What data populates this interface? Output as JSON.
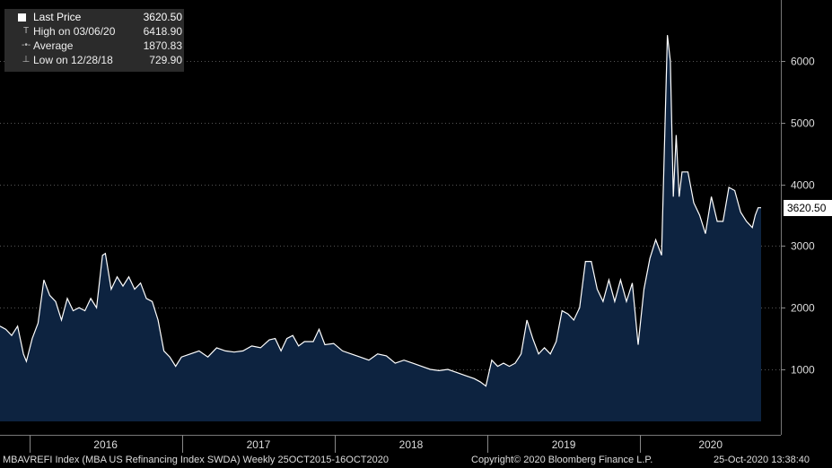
{
  "chart_data": {
    "type": "area",
    "title": "",
    "xlabel": "",
    "ylabel": "",
    "x_start": "2015-10-23",
    "x_end": "2020-10-16",
    "ylim": [
      0,
      7000
    ],
    "y_ticks": [
      1000,
      2000,
      3000,
      4000,
      5000,
      6000
    ],
    "x_ticks": [
      "2016",
      "2017",
      "2018",
      "2019",
      "2020"
    ],
    "grid": true,
    "series": [
      {
        "name": "Last Price",
        "color": "#ffffff",
        "fill": "#0d2340",
        "points": [
          [
            "2015-10-23",
            1700
          ],
          [
            "2015-11-06",
            1650
          ],
          [
            "2015-11-20",
            1550
          ],
          [
            "2015-12-04",
            1700
          ],
          [
            "2015-12-18",
            1250
          ],
          [
            "2015-12-25",
            1130
          ],
          [
            "2016-01-08",
            1500
          ],
          [
            "2016-01-22",
            1750
          ],
          [
            "2016-02-05",
            2450
          ],
          [
            "2016-02-19",
            2200
          ],
          [
            "2016-03-04",
            2100
          ],
          [
            "2016-03-18",
            1800
          ],
          [
            "2016-04-01",
            2150
          ],
          [
            "2016-04-15",
            1950
          ],
          [
            "2016-04-29",
            2000
          ],
          [
            "2016-05-13",
            1950
          ],
          [
            "2016-05-27",
            2150
          ],
          [
            "2016-06-10",
            2000
          ],
          [
            "2016-06-24",
            2850
          ],
          [
            "2016-07-01",
            2880
          ],
          [
            "2016-07-15",
            2300
          ],
          [
            "2016-07-29",
            2500
          ],
          [
            "2016-08-12",
            2350
          ],
          [
            "2016-08-26",
            2500
          ],
          [
            "2016-09-09",
            2300
          ],
          [
            "2016-09-23",
            2400
          ],
          [
            "2016-10-07",
            2150
          ],
          [
            "2016-10-21",
            2100
          ],
          [
            "2016-11-04",
            1800
          ],
          [
            "2016-11-18",
            1300
          ],
          [
            "2016-12-02",
            1200
          ],
          [
            "2016-12-16",
            1050
          ],
          [
            "2016-12-30",
            1200
          ],
          [
            "2017-01-20",
            1250
          ],
          [
            "2017-02-10",
            1300
          ],
          [
            "2017-03-03",
            1200
          ],
          [
            "2017-03-24",
            1350
          ],
          [
            "2017-04-14",
            1300
          ],
          [
            "2017-05-05",
            1280
          ],
          [
            "2017-05-26",
            1300
          ],
          [
            "2017-06-16",
            1380
          ],
          [
            "2017-07-07",
            1350
          ],
          [
            "2017-07-28",
            1480
          ],
          [
            "2017-08-11",
            1500
          ],
          [
            "2017-08-25",
            1300
          ],
          [
            "2017-09-08",
            1500
          ],
          [
            "2017-09-22",
            1550
          ],
          [
            "2017-10-06",
            1380
          ],
          [
            "2017-10-20",
            1450
          ],
          [
            "2017-11-10",
            1450
          ],
          [
            "2017-11-24",
            1650
          ],
          [
            "2017-12-08",
            1400
          ],
          [
            "2017-12-29",
            1420
          ],
          [
            "2018-01-19",
            1300
          ],
          [
            "2018-02-09",
            1250
          ],
          [
            "2018-03-02",
            1200
          ],
          [
            "2018-03-23",
            1150
          ],
          [
            "2018-04-13",
            1250
          ],
          [
            "2018-05-04",
            1220
          ],
          [
            "2018-05-25",
            1100
          ],
          [
            "2018-06-15",
            1150
          ],
          [
            "2018-07-06",
            1100
          ],
          [
            "2018-07-27",
            1050
          ],
          [
            "2018-08-17",
            1000
          ],
          [
            "2018-09-07",
            980
          ],
          [
            "2018-09-28",
            1000
          ],
          [
            "2018-10-19",
            950
          ],
          [
            "2018-11-09",
            900
          ],
          [
            "2018-11-30",
            850
          ],
          [
            "2018-12-14",
            800
          ],
          [
            "2018-12-28",
            729.9
          ],
          [
            "2019-01-11",
            1150
          ],
          [
            "2019-01-25",
            1050
          ],
          [
            "2019-02-08",
            1100
          ],
          [
            "2019-02-22",
            1050
          ],
          [
            "2019-03-08",
            1100
          ],
          [
            "2019-03-22",
            1250
          ],
          [
            "2019-04-05",
            1800
          ],
          [
            "2019-04-19",
            1500
          ],
          [
            "2019-05-03",
            1250
          ],
          [
            "2019-05-17",
            1350
          ],
          [
            "2019-05-31",
            1250
          ],
          [
            "2019-06-14",
            1450
          ],
          [
            "2019-06-28",
            1950
          ],
          [
            "2019-07-12",
            1900
          ],
          [
            "2019-07-26",
            1800
          ],
          [
            "2019-08-09",
            2000
          ],
          [
            "2019-08-23",
            2750
          ],
          [
            "2019-09-06",
            2750
          ],
          [
            "2019-09-20",
            2300
          ],
          [
            "2019-10-04",
            2100
          ],
          [
            "2019-10-18",
            2450
          ],
          [
            "2019-11-01",
            2100
          ],
          [
            "2019-11-15",
            2450
          ],
          [
            "2019-11-29",
            2100
          ],
          [
            "2019-12-13",
            2400
          ],
          [
            "2019-12-27",
            1400
          ],
          [
            "2020-01-10",
            2300
          ],
          [
            "2020-01-24",
            2800
          ],
          [
            "2020-02-07",
            3100
          ],
          [
            "2020-02-21",
            2850
          ],
          [
            "2020-03-06",
            6418.9
          ],
          [
            "2020-03-13",
            6000
          ],
          [
            "2020-03-20",
            3800
          ],
          [
            "2020-03-27",
            4800
          ],
          [
            "2020-04-03",
            3800
          ],
          [
            "2020-04-10",
            4200
          ],
          [
            "2020-04-24",
            4200
          ],
          [
            "2020-05-08",
            3700
          ],
          [
            "2020-05-22",
            3500
          ],
          [
            "2020-06-05",
            3200
          ],
          [
            "2020-06-19",
            3800
          ],
          [
            "2020-07-03",
            3400
          ],
          [
            "2020-07-17",
            3400
          ],
          [
            "2020-07-31",
            3950
          ],
          [
            "2020-08-14",
            3900
          ],
          [
            "2020-08-28",
            3550
          ],
          [
            "2020-09-11",
            3400
          ],
          [
            "2020-09-25",
            3300
          ],
          [
            "2020-10-02",
            3500
          ],
          [
            "2020-10-09",
            3620.5
          ],
          [
            "2020-10-16",
            3620.5
          ]
        ]
      }
    ]
  },
  "legend": {
    "rows": [
      {
        "label": "Last Price",
        "value": "3620.50"
      },
      {
        "label": "High on 03/06/20",
        "value": "6418.90"
      },
      {
        "label": "Average",
        "value": "1870.83"
      },
      {
        "label": "Low on 12/28/18",
        "value": "729.90"
      }
    ]
  },
  "last_price_label": "3620.50",
  "footer": {
    "ticker": "MBAVREFI Index (MBA US Refinancing Index SWDA)  Weekly 25OCT2015-16OCT2020",
    "copyright": "Copyright© 2020 Bloomberg Finance L.P.",
    "timestamp": "25-Oct-2020 13:38:40"
  }
}
